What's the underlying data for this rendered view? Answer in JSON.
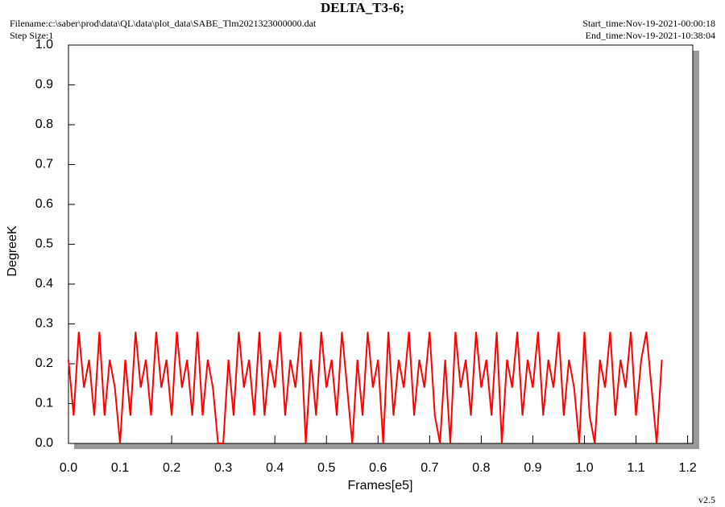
{
  "chart_data": {
    "type": "line",
    "title": "DELTA_T3-6;",
    "filename": "Filename:c:\\saber\\prod\\data\\QL\\data\\plot_data\\SABE_Tlm2021323000000.dat",
    "step_size": "Step Size:1",
    "start_time": "Start_time:Nov-19-2021-00:00:18",
    "end_time": "End_time:Nov-19-2021-10:38:04",
    "version": "v2.5",
    "xlabel": "Frames[e5]",
    "ylabel": "DegreeK",
    "xlim": [
      0,
      1.21
    ],
    "ylim": [
      0,
      1
    ],
    "xticks": [
      {
        "value": 0,
        "label": "0.0"
      },
      0.1,
      0.2,
      0.3,
      0.4,
      0.5,
      0.6,
      0.7,
      0.8,
      0.9,
      {
        "value": 1,
        "label": "1.0"
      },
      1.1,
      1.2
    ],
    "yticks": [
      {
        "value": 0,
        "label": "0.0"
      },
      0.1,
      0.2,
      0.3,
      0.4,
      0.5,
      0.6,
      0.7,
      0.8,
      0.9,
      {
        "value": 1,
        "label": "1.0"
      }
    ],
    "x": [
      0,
      0.01,
      0.02,
      0.03,
      0.04,
      0.05,
      0.06,
      0.07,
      0.08,
      0.09,
      0.1,
      0.11,
      0.12,
      0.13,
      0.14,
      0.15,
      0.16,
      0.17,
      0.18,
      0.19,
      0.2,
      0.21,
      0.22,
      0.23,
      0.24,
      0.25,
      0.26,
      0.27,
      0.28,
      0.29,
      0.3,
      0.31,
      0.32,
      0.33,
      0.34,
      0.35,
      0.36,
      0.37,
      0.38,
      0.39,
      0.4,
      0.41,
      0.42,
      0.43,
      0.44,
      0.45,
      0.46,
      0.47,
      0.48,
      0.49,
      0.5,
      0.51,
      0.52,
      0.53,
      0.54,
      0.55,
      0.56,
      0.57,
      0.58,
      0.59,
      0.6,
      0.61,
      0.62,
      0.63,
      0.64,
      0.65,
      0.66,
      0.67,
      0.68,
      0.69,
      0.7,
      0.71,
      0.72,
      0.73,
      0.74,
      0.75,
      0.76,
      0.77,
      0.78,
      0.79,
      0.8,
      0.81,
      0.82,
      0.83,
      0.84,
      0.85,
      0.86,
      0.87,
      0.88,
      0.89,
      0.9,
      0.91,
      0.92,
      0.93,
      0.94,
      0.95,
      0.96,
      0.97,
      0.98,
      0.99,
      1,
      1.01,
      1.02,
      1.03,
      1.04,
      1.05,
      1.06,
      1.07,
      1.08,
      1.09,
      1.1,
      1.11,
      1.12,
      1.13,
      1.14,
      1.15
    ],
    "series": [
      {
        "name": "DELTA_T3-6",
        "color": "#ff0000",
        "values": [
          0.21,
          0.07,
          0.28,
          0.14,
          0.21,
          0.07,
          0.28,
          0.07,
          0.21,
          0.14,
          0.0,
          0.21,
          0.07,
          0.28,
          0.14,
          0.21,
          0.07,
          0.28,
          0.14,
          0.21,
          0.07,
          0.28,
          0.14,
          0.21,
          0.07,
          0.28,
          0.07,
          0.21,
          0.14,
          0.0,
          0.0,
          0.21,
          0.07,
          0.28,
          0.14,
          0.21,
          0.07,
          0.28,
          0.07,
          0.21,
          0.14,
          0.28,
          0.07,
          0.21,
          0.14,
          0.28,
          0.0,
          0.21,
          0.07,
          0.28,
          0.14,
          0.21,
          0.07,
          0.28,
          0.14,
          0.0,
          0.21,
          0.07,
          0.28,
          0.14,
          0.21,
          0.0,
          0.28,
          0.07,
          0.21,
          0.14,
          0.28,
          0.07,
          0.21,
          0.14,
          0.28,
          0.07,
          0.0,
          0.21,
          0.0,
          0.28,
          0.14,
          0.21,
          0.07,
          0.28,
          0.14,
          0.21,
          0.07,
          0.28,
          0.0,
          0.21,
          0.14,
          0.28,
          0.07,
          0.21,
          0.14,
          0.28,
          0.07,
          0.21,
          0.14,
          0.28,
          0.07,
          0.21,
          0.14,
          0.0,
          0.28,
          0.07,
          0.0,
          0.21,
          0.14,
          0.28,
          0.07,
          0.21,
          0.14,
          0.28,
          0.07,
          0.21,
          0.28,
          0.14,
          0.0,
          0.21
        ]
      }
    ]
  }
}
